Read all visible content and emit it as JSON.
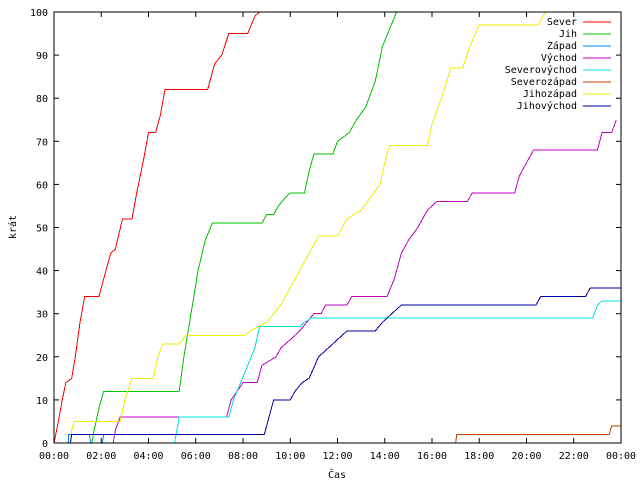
{
  "chart_data": {
    "type": "line",
    "title": "",
    "xlabel": "Čas",
    "ylabel": "krát",
    "xlim": [
      0,
      24
    ],
    "ylim": [
      0,
      100
    ],
    "x_tick_labels": [
      "00:00",
      "02:00",
      "04:00",
      "06:00",
      "08:00",
      "10:00",
      "12:00",
      "14:00",
      "16:00",
      "18:00",
      "20:00",
      "22:00",
      "00:00"
    ],
    "y_tick_labels": [
      "0",
      "10",
      "20",
      "30",
      "40",
      "50",
      "60",
      "70",
      "80",
      "90",
      "100"
    ],
    "grid": false,
    "legend": "top-right",
    "series": [
      {
        "name": "Sever",
        "color": "#ff0000",
        "points": [
          [
            0,
            0
          ],
          [
            0.15,
            4
          ],
          [
            0.35,
            10
          ],
          [
            0.5,
            14
          ],
          [
            0.75,
            15
          ],
          [
            0.9,
            20
          ],
          [
            1.1,
            28
          ],
          [
            1.3,
            34
          ],
          [
            1.9,
            34
          ],
          [
            2.1,
            38
          ],
          [
            2.4,
            44
          ],
          [
            2.6,
            45
          ],
          [
            2.9,
            52
          ],
          [
            3.3,
            52
          ],
          [
            3.5,
            58
          ],
          [
            3.8,
            66
          ],
          [
            4.0,
            72
          ],
          [
            4.3,
            72
          ],
          [
            4.5,
            76
          ],
          [
            4.7,
            82
          ],
          [
            6.5,
            82
          ],
          [
            6.8,
            88
          ],
          [
            7.1,
            90
          ],
          [
            7.4,
            95
          ],
          [
            8.2,
            95
          ],
          [
            8.5,
            99
          ],
          [
            8.7,
            100
          ]
        ]
      },
      {
        "name": "Jih",
        "color": "#00c000",
        "points": [
          [
            0,
            0
          ],
          [
            1.6,
            0
          ],
          [
            1.7,
            3
          ],
          [
            1.9,
            8
          ],
          [
            2.1,
            12
          ],
          [
            5.3,
            12
          ],
          [
            5.5,
            20
          ],
          [
            5.8,
            30
          ],
          [
            6.1,
            40
          ],
          [
            6.4,
            47
          ],
          [
            6.7,
            51
          ],
          [
            8.8,
            51
          ],
          [
            9.0,
            53
          ],
          [
            9.3,
            53
          ],
          [
            9.5,
            55
          ],
          [
            9.8,
            57
          ],
          [
            10.0,
            58
          ],
          [
            10.6,
            58
          ],
          [
            10.8,
            63
          ],
          [
            11.0,
            67
          ],
          [
            11.8,
            67
          ],
          [
            12.0,
            70
          ],
          [
            12.5,
            72
          ],
          [
            12.8,
            75
          ],
          [
            13.2,
            78
          ],
          [
            13.6,
            84
          ],
          [
            13.9,
            92
          ],
          [
            14.2,
            96
          ],
          [
            14.5,
            100
          ]
        ]
      },
      {
        "name": "Západ",
        "color": "#0080ff",
        "points": [
          [
            0,
            0
          ],
          [
            0.6,
            0
          ],
          [
            0.62,
            2
          ],
          [
            1.5,
            2
          ],
          [
            1.55,
            0
          ],
          [
            2.05,
            0
          ],
          [
            2.1,
            2
          ],
          [
            2.3,
            2
          ]
        ]
      },
      {
        "name": "Východ",
        "color": "#c000c0",
        "points": [
          [
            0,
            0
          ],
          [
            2.5,
            0
          ],
          [
            2.6,
            3
          ],
          [
            2.8,
            6
          ],
          [
            5.3,
            6
          ],
          [
            7.3,
            6
          ],
          [
            7.5,
            10
          ],
          [
            8.0,
            14
          ],
          [
            8.6,
            14
          ],
          [
            8.8,
            18
          ],
          [
            9.4,
            20
          ],
          [
            9.6,
            22
          ],
          [
            10.0,
            24
          ],
          [
            10.4,
            26
          ],
          [
            10.7,
            28
          ],
          [
            11.0,
            30
          ],
          [
            11.3,
            30
          ],
          [
            11.5,
            32
          ],
          [
            12.4,
            32
          ],
          [
            12.6,
            34
          ],
          [
            14.1,
            34
          ],
          [
            14.4,
            38
          ],
          [
            14.7,
            44
          ],
          [
            15.0,
            47
          ],
          [
            15.4,
            50
          ],
          [
            15.8,
            54
          ],
          [
            16.2,
            56
          ],
          [
            17.5,
            56
          ],
          [
            17.7,
            58
          ],
          [
            19.5,
            58
          ],
          [
            19.7,
            62
          ],
          [
            19.9,
            64
          ],
          [
            20.1,
            66
          ],
          [
            20.3,
            68
          ],
          [
            23.0,
            68
          ],
          [
            23.2,
            72
          ],
          [
            23.6,
            72
          ],
          [
            23.8,
            75
          ]
        ]
      },
      {
        "name": "Severovýchod",
        "color": "#00e0e0",
        "points": [
          [
            0,
            0
          ],
          [
            5.1,
            0
          ],
          [
            5.2,
            3
          ],
          [
            5.3,
            6
          ],
          [
            7.4,
            6
          ],
          [
            7.6,
            10
          ],
          [
            7.9,
            14
          ],
          [
            8.2,
            18
          ],
          [
            8.5,
            22
          ],
          [
            8.7,
            27
          ],
          [
            10.4,
            27
          ],
          [
            10.6,
            28
          ],
          [
            10.9,
            29
          ],
          [
            22.8,
            29
          ],
          [
            23.0,
            32
          ],
          [
            23.2,
            33
          ],
          [
            24,
            33
          ]
        ]
      },
      {
        "name": "Severozápad",
        "color": "#c04000",
        "points": [
          [
            17.0,
            0
          ],
          [
            17.05,
            2
          ],
          [
            23.5,
            2
          ],
          [
            23.6,
            4
          ],
          [
            24,
            4
          ]
        ]
      },
      {
        "name": "Jihozápad",
        "color": "#eeee00",
        "points": [
          [
            0,
            0
          ],
          [
            0.7,
            0
          ],
          [
            0.75,
            3
          ],
          [
            0.85,
            5
          ],
          [
            2.8,
            5
          ],
          [
            3.0,
            10
          ],
          [
            3.3,
            15
          ],
          [
            4.2,
            15
          ],
          [
            4.4,
            20
          ],
          [
            4.6,
            23
          ],
          [
            5.3,
            23
          ],
          [
            5.6,
            25
          ],
          [
            8.1,
            25
          ],
          [
            8.3,
            26
          ],
          [
            9.0,
            28
          ],
          [
            9.6,
            32
          ],
          [
            10.0,
            36
          ],
          [
            10.4,
            40
          ],
          [
            10.8,
            44
          ],
          [
            11.2,
            48
          ],
          [
            12.0,
            48
          ],
          [
            12.4,
            52
          ],
          [
            13.0,
            54
          ],
          [
            13.4,
            57
          ],
          [
            13.8,
            60
          ],
          [
            14.0,
            65
          ],
          [
            14.2,
            69
          ],
          [
            15.8,
            69
          ],
          [
            16.0,
            74
          ],
          [
            16.4,
            80
          ],
          [
            16.8,
            87
          ],
          [
            17.3,
            87
          ],
          [
            17.6,
            92
          ],
          [
            18.0,
            97
          ],
          [
            20.5,
            97
          ],
          [
            20.8,
            100
          ],
          [
            21.2,
            100
          ]
        ]
      },
      {
        "name": "Jihovýchod",
        "color": "#0000a0",
        "points": [
          [
            0,
            0
          ],
          [
            0.7,
            0
          ],
          [
            0.75,
            2
          ],
          [
            8.9,
            2
          ],
          [
            9.1,
            6
          ],
          [
            9.3,
            10
          ],
          [
            10.0,
            10
          ],
          [
            10.2,
            12
          ],
          [
            10.5,
            14
          ],
          [
            10.8,
            15
          ],
          [
            11.2,
            20
          ],
          [
            11.6,
            22
          ],
          [
            12.0,
            24
          ],
          [
            12.4,
            26
          ],
          [
            13.6,
            26
          ],
          [
            13.9,
            28
          ],
          [
            14.3,
            30
          ],
          [
            14.7,
            32
          ],
          [
            20.4,
            32
          ],
          [
            20.6,
            34
          ],
          [
            22.5,
            34
          ],
          [
            22.7,
            36
          ],
          [
            24,
            36
          ]
        ]
      }
    ]
  }
}
